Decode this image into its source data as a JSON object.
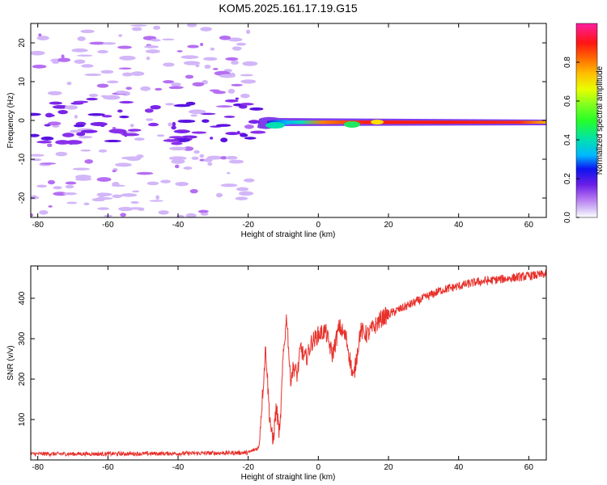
{
  "title": "KOM5.2025.161.17.19.G15",
  "chart_data": [
    {
      "type": "heatmap",
      "xlabel": "Height of straight line (km)",
      "ylabel": "Frequency (Hz)",
      "xlim": [
        -82,
        65
      ],
      "ylim": [
        -25,
        25
      ],
      "xticks": [
        "-80",
        "-60",
        "-40",
        "-20",
        "0",
        "20",
        "40",
        "60"
      ],
      "yticks": [
        "20",
        "10",
        "0",
        "-10",
        "-20"
      ],
      "colorbar": {
        "label": "Normalized spectral amplitude",
        "range": [
          0,
          1
        ],
        "ticks": [
          "0.0",
          "0.2",
          "0.4",
          "0.6",
          "0.8"
        ],
        "colormap": "gist_ncar-like: white, lavender, violet, blue, cyan, green, yellow, orange, red, magenta"
      },
      "features": [
        {
          "name": "strong signal band",
          "x_range": [
            -17,
            65
          ],
          "frequency_hz": -0.3,
          "amplitude": "0.6–0.95"
        },
        {
          "name": "weak noise blobs",
          "x_range": [
            -82,
            -17
          ],
          "frequency_range_hz": [
            -25,
            25
          ],
          "amplitude": "0.05–0.3"
        }
      ]
    },
    {
      "type": "line",
      "xlabel": "Height of straight line (km)",
      "ylabel": "SNR (v/v)",
      "xlim": [
        -82,
        65
      ],
      "ylim": [
        0,
        480
      ],
      "xticks": [
        "-80",
        "-60",
        "-40",
        "-20",
        "0",
        "20",
        "40",
        "60"
      ],
      "yticks": [
        "400",
        "300",
        "200",
        "100"
      ],
      "color": "#e8302a",
      "series": [
        {
          "x": [
            -82,
            -60,
            -40,
            -20,
            -17,
            -16,
            -15,
            -14,
            -13,
            -12,
            -11,
            -10,
            -9,
            -8,
            -7,
            -6,
            -5,
            -4,
            -3,
            -2,
            -1,
            0,
            2,
            4,
            6,
            8,
            10,
            12,
            14,
            16,
            18,
            20,
            25,
            30,
            35,
            40,
            45,
            50,
            55,
            60,
            65
          ],
          "y": [
            15,
            15,
            16,
            18,
            30,
            150,
            280,
            120,
            40,
            130,
            60,
            260,
            360,
            200,
            230,
            210,
            280,
            250,
            260,
            290,
            300,
            310,
            320,
            260,
            330,
            300,
            200,
            320,
            310,
            330,
            350,
            360,
            380,
            400,
            420,
            430,
            440,
            445,
            450,
            455,
            460
          ]
        }
      ]
    }
  ]
}
